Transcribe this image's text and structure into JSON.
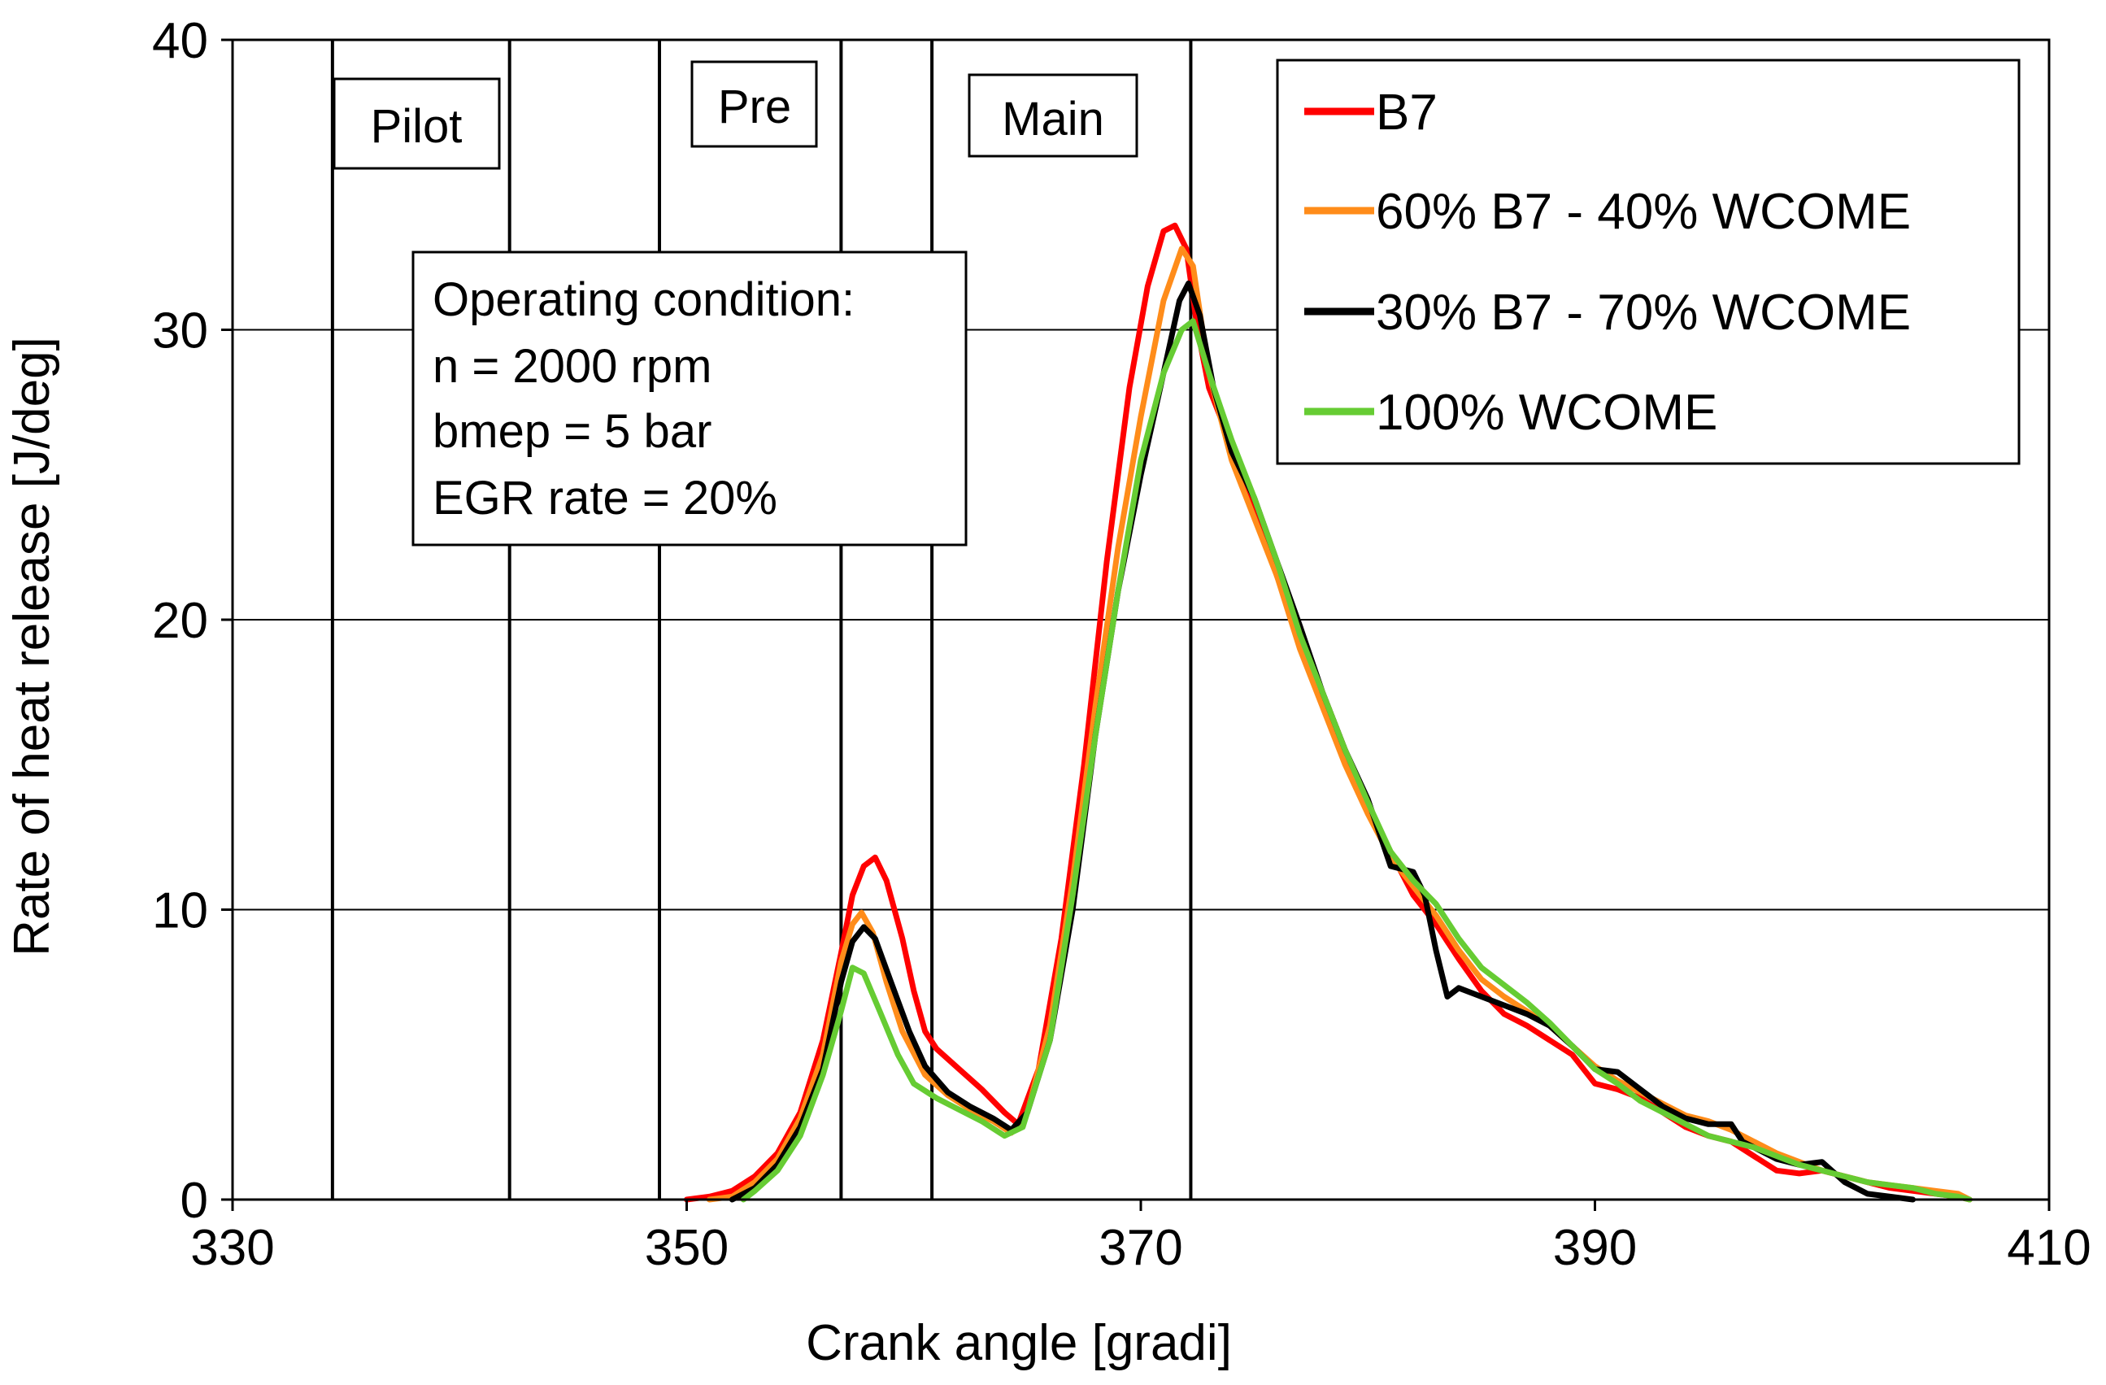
{
  "chart_data": {
    "type": "line",
    "title": "",
    "xlabel": "Crank angle [gradi]",
    "ylabel": "Rate of heat release [J/deg]",
    "xlim": [
      330,
      410
    ],
    "ylim": [
      0,
      40
    ],
    "x_ticks": [
      330,
      350,
      370,
      390,
      410
    ],
    "y_ticks": [
      0,
      10,
      20,
      30,
      40
    ],
    "grid": "horizontal",
    "legend_position": "top-right",
    "colors": {
      "B7": "#ff0000",
      "60% B7 - 40% WCOME": "#ff8c1a",
      "30% B7 - 70% WCOME": "#000000",
      "100% WCOME": "#66cc33"
    },
    "series": [
      {
        "name": "B7",
        "points": [
          [
            350,
            0
          ],
          [
            351,
            0.1
          ],
          [
            352,
            0.3
          ],
          [
            353,
            0.8
          ],
          [
            354,
            1.6
          ],
          [
            355,
            3.0
          ],
          [
            356,
            5.5
          ],
          [
            356.8,
            8.5
          ],
          [
            357.3,
            10.5
          ],
          [
            357.8,
            11.5
          ],
          [
            358.3,
            11.8
          ],
          [
            358.8,
            11.0
          ],
          [
            359.5,
            9.0
          ],
          [
            360,
            7.2
          ],
          [
            360.5,
            5.8
          ],
          [
            361,
            5.2
          ],
          [
            362,
            4.5
          ],
          [
            363,
            3.8
          ],
          [
            364,
            3.0
          ],
          [
            364.6,
            2.6
          ],
          [
            365.5,
            4.5
          ],
          [
            366.5,
            9
          ],
          [
            367.5,
            15
          ],
          [
            368.5,
            22
          ],
          [
            369.5,
            28
          ],
          [
            370.3,
            31.5
          ],
          [
            371,
            33.4
          ],
          [
            371.5,
            33.6
          ],
          [
            372,
            32.8
          ],
          [
            372.5,
            30
          ],
          [
            373,
            28
          ],
          [
            374,
            26
          ],
          [
            375,
            24
          ],
          [
            376,
            21.5
          ],
          [
            377,
            19.5
          ],
          [
            378,
            17.5
          ],
          [
            379,
            15.5
          ],
          [
            380,
            13.5
          ],
          [
            381,
            12.0
          ],
          [
            382,
            10.5
          ],
          [
            383,
            9.5
          ],
          [
            384,
            8.3
          ],
          [
            385,
            7.2
          ],
          [
            386,
            6.4
          ],
          [
            387,
            6.0
          ],
          [
            388,
            5.5
          ],
          [
            389,
            5.0
          ],
          [
            390,
            4.0
          ],
          [
            391,
            3.8
          ],
          [
            392,
            3.5
          ],
          [
            393,
            3.0
          ],
          [
            394,
            2.5
          ],
          [
            395,
            2.2
          ],
          [
            396,
            2.0
          ],
          [
            397,
            1.5
          ],
          [
            398,
            1.0
          ],
          [
            399,
            0.9
          ],
          [
            400,
            1.0
          ],
          [
            401,
            0.8
          ],
          [
            402,
            0.6
          ],
          [
            403,
            0.4
          ],
          [
            404,
            0.3
          ],
          [
            405,
            0.2
          ],
          [
            406,
            0.1
          ],
          [
            406.5,
            0
          ]
        ]
      },
      {
        "name": "60% B7 - 40% WCOME",
        "points": [
          [
            351,
            0
          ],
          [
            352,
            0.1
          ],
          [
            353,
            0.6
          ],
          [
            354,
            1.4
          ],
          [
            355,
            2.8
          ],
          [
            356,
            5.0
          ],
          [
            356.8,
            8.2
          ],
          [
            357.3,
            9.5
          ],
          [
            357.7,
            9.9
          ],
          [
            358.2,
            9.2
          ],
          [
            358.8,
            7.5
          ],
          [
            359.5,
            5.8
          ],
          [
            360.5,
            4.3
          ],
          [
            361.5,
            3.6
          ],
          [
            362.5,
            3.1
          ],
          [
            363.5,
            2.7
          ],
          [
            364.3,
            2.3
          ],
          [
            365,
            3.0
          ],
          [
            366,
            6
          ],
          [
            367,
            11
          ],
          [
            368,
            17
          ],
          [
            369,
            22.5
          ],
          [
            370,
            27
          ],
          [
            371,
            31
          ],
          [
            371.8,
            32.8
          ],
          [
            372.3,
            32.2
          ],
          [
            373,
            28.5
          ],
          [
            374,
            25.5
          ],
          [
            375,
            23.5
          ],
          [
            376,
            21.5
          ],
          [
            377,
            19
          ],
          [
            378,
            17.0
          ],
          [
            379,
            15.0
          ],
          [
            380,
            13.3
          ],
          [
            381,
            11.8
          ],
          [
            382,
            10.8
          ],
          [
            383,
            9.8
          ],
          [
            384,
            8.6
          ],
          [
            385,
            7.6
          ],
          [
            386,
            7.0
          ],
          [
            387,
            6.5
          ],
          [
            388,
            6.0
          ],
          [
            389,
            5.3
          ],
          [
            390,
            4.6
          ],
          [
            391,
            4.1
          ],
          [
            392,
            3.7
          ],
          [
            393,
            3.3
          ],
          [
            394,
            2.9
          ],
          [
            395,
            2.7
          ],
          [
            396,
            2.4
          ],
          [
            397,
            2.0
          ],
          [
            398,
            1.6
          ],
          [
            399,
            1.3
          ],
          [
            400,
            1.0
          ],
          [
            401,
            0.8
          ],
          [
            402,
            0.6
          ],
          [
            403,
            0.5
          ],
          [
            404,
            0.4
          ],
          [
            405,
            0.3
          ],
          [
            406,
            0.2
          ],
          [
            406.5,
            0
          ]
        ]
      },
      {
        "name": "30% B7 - 70% WCOME",
        "points": [
          [
            352,
            0
          ],
          [
            353,
            0.4
          ],
          [
            354,
            1.2
          ],
          [
            355,
            2.5
          ],
          [
            356,
            4.5
          ],
          [
            356.8,
            7.5
          ],
          [
            357.3,
            8.9
          ],
          [
            357.8,
            9.4
          ],
          [
            358.3,
            9.0
          ],
          [
            359,
            7.5
          ],
          [
            359.8,
            5.8
          ],
          [
            360.5,
            4.6
          ],
          [
            361.5,
            3.7
          ],
          [
            362.5,
            3.2
          ],
          [
            363.5,
            2.8
          ],
          [
            364.3,
            2.4
          ],
          [
            365,
            3.0
          ],
          [
            366,
            5.5
          ],
          [
            367,
            10
          ],
          [
            368,
            16
          ],
          [
            369,
            21
          ],
          [
            370,
            25
          ],
          [
            371,
            28.5
          ],
          [
            371.7,
            31
          ],
          [
            372.1,
            31.6
          ],
          [
            372.6,
            30.5
          ],
          [
            373.2,
            28
          ],
          [
            374,
            25.8
          ],
          [
            375,
            24.2
          ],
          [
            376,
            22
          ],
          [
            377,
            19.8
          ],
          [
            378,
            17.5
          ],
          [
            379,
            15.5
          ],
          [
            380,
            13.8
          ],
          [
            381,
            11.5
          ],
          [
            382,
            11.3
          ],
          [
            382.5,
            10.5
          ],
          [
            383,
            8.6
          ],
          [
            383.5,
            7.0
          ],
          [
            384,
            7.3
          ],
          [
            385,
            7.0
          ],
          [
            386,
            6.7
          ],
          [
            387,
            6.4
          ],
          [
            388,
            6.0
          ],
          [
            389,
            5.3
          ],
          [
            390,
            4.5
          ],
          [
            391,
            4.4
          ],
          [
            392,
            3.8
          ],
          [
            393,
            3.2
          ],
          [
            394,
            2.8
          ],
          [
            395,
            2.6
          ],
          [
            396,
            2.6
          ],
          [
            396.5,
            2.0
          ],
          [
            397,
            1.8
          ],
          [
            398,
            1.4
          ],
          [
            399,
            1.2
          ],
          [
            400,
            1.3
          ],
          [
            401,
            0.6
          ],
          [
            402,
            0.2
          ],
          [
            403,
            0.1
          ],
          [
            404,
            0
          ]
        ]
      },
      {
        "name": "100% WCOME",
        "points": [
          [
            352.5,
            0
          ],
          [
            353,
            0.3
          ],
          [
            354,
            1.0
          ],
          [
            355,
            2.2
          ],
          [
            356,
            4.3
          ],
          [
            356.8,
            6.5
          ],
          [
            357.3,
            8.0
          ],
          [
            357.8,
            7.8
          ],
          [
            358.5,
            6.5
          ],
          [
            359.3,
            5.0
          ],
          [
            360,
            4.0
          ],
          [
            361,
            3.5
          ],
          [
            362,
            3.1
          ],
          [
            363,
            2.7
          ],
          [
            364,
            2.2
          ],
          [
            364.8,
            2.5
          ],
          [
            366,
            5.5
          ],
          [
            367,
            10.5
          ],
          [
            368,
            16
          ],
          [
            369,
            21
          ],
          [
            370,
            25.5
          ],
          [
            371,
            28.5
          ],
          [
            371.8,
            30
          ],
          [
            372.3,
            30.3
          ],
          [
            373,
            28.5
          ],
          [
            374,
            26.2
          ],
          [
            375,
            24.2
          ],
          [
            376,
            22
          ],
          [
            377,
            19.5
          ],
          [
            378,
            17.5
          ],
          [
            379,
            15.5
          ],
          [
            380,
            13.7
          ],
          [
            381,
            12.0
          ],
          [
            382,
            11.0
          ],
          [
            383,
            10.2
          ],
          [
            384,
            9.0
          ],
          [
            385,
            8.0
          ],
          [
            386,
            7.4
          ],
          [
            387,
            6.8
          ],
          [
            388,
            6.1
          ],
          [
            389,
            5.3
          ],
          [
            390,
            4.5
          ],
          [
            391,
            4.0
          ],
          [
            392,
            3.4
          ],
          [
            393,
            3.0
          ],
          [
            394,
            2.6
          ],
          [
            395,
            2.2
          ],
          [
            396,
            2.0
          ],
          [
            397,
            1.8
          ],
          [
            398,
            1.5
          ],
          [
            399,
            1.2
          ],
          [
            400,
            1.0
          ],
          [
            401,
            0.8
          ],
          [
            402,
            0.6
          ],
          [
            403,
            0.5
          ],
          [
            404,
            0.4
          ],
          [
            405,
            0.2
          ],
          [
            406,
            0.1
          ],
          [
            406.5,
            0
          ]
        ]
      }
    ],
    "injection_markers": [
      334.4,
      342.2,
      348.8,
      356.8,
      360.8,
      372.2
    ],
    "injection_labels": [
      "Pilot",
      "Pre",
      "Main"
    ],
    "annotation": {
      "lines": [
        "Operating condition:",
        "n = 2000 rpm",
        "bmep = 5 bar",
        "EGR rate = 20%"
      ]
    }
  }
}
